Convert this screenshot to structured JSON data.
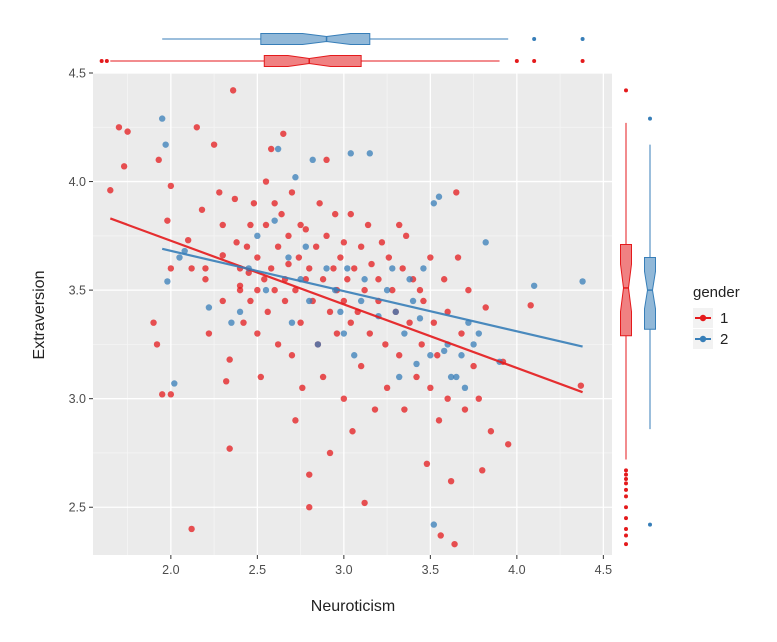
{
  "chart_data": {
    "type": "scatter",
    "title": "",
    "xlabel": "Neuroticism",
    "ylabel": "Extraversion",
    "xlim": [
      1.55,
      4.55
    ],
    "ylim": [
      2.28,
      4.5
    ],
    "x_ticks": [
      "2.0",
      "2.5",
      "3.0",
      "3.5",
      "4.0",
      "4.5"
    ],
    "y_ticks": [
      "2.5",
      "3.0",
      "3.5",
      "4.0",
      "4.5"
    ],
    "grid": true,
    "panel_background": "#ebebeb",
    "legend": {
      "title": "gender",
      "placement": "right",
      "entries": [
        {
          "label": "1",
          "color": "#e41a1c"
        },
        {
          "label": "2",
          "color": "#377eb8"
        }
      ]
    },
    "series": [
      {
        "name": "1",
        "color": "#e41a1c",
        "trend": {
          "x": [
            1.65,
            4.38
          ],
          "y": [
            3.83,
            3.03
          ]
        },
        "x_box": {
          "whisker_low": 1.65,
          "q1": 2.54,
          "median": 2.8,
          "q3": 3.1,
          "whisker_high": 3.9,
          "outliers": [
            1.6,
            1.63,
            4.0,
            4.1,
            4.38
          ]
        },
        "y_box": {
          "whisker_low": 2.72,
          "q1": 3.29,
          "median": 3.51,
          "q3": 3.71,
          "whisker_high": 4.27,
          "outliers": [
            2.33,
            2.37,
            2.4,
            2.45,
            2.5,
            2.55,
            2.58,
            2.61,
            2.63,
            2.65,
            2.67,
            4.42
          ]
        },
        "points": [
          [
            1.65,
            3.96
          ],
          [
            1.7,
            4.25
          ],
          [
            1.73,
            4.07
          ],
          [
            1.75,
            4.23
          ],
          [
            1.9,
            3.35
          ],
          [
            1.92,
            3.25
          ],
          [
            1.95,
            3.02
          ],
          [
            2.0,
            3.02
          ],
          [
            1.93,
            4.1
          ],
          [
            2.0,
            3.98
          ],
          [
            1.98,
            3.82
          ],
          [
            2.0,
            3.6
          ],
          [
            2.1,
            3.73
          ],
          [
            2.12,
            3.6
          ],
          [
            2.12,
            2.4
          ],
          [
            2.15,
            4.25
          ],
          [
            2.18,
            3.87
          ],
          [
            2.2,
            3.6
          ],
          [
            2.2,
            3.55
          ],
          [
            2.22,
            3.3
          ],
          [
            2.25,
            4.17
          ],
          [
            2.28,
            3.95
          ],
          [
            2.3,
            3.8
          ],
          [
            2.3,
            3.66
          ],
          [
            2.3,
            3.45
          ],
          [
            2.32,
            3.08
          ],
          [
            2.34,
            2.77
          ],
          [
            2.34,
            3.18
          ],
          [
            2.36,
            4.42
          ],
          [
            2.37,
            3.92
          ],
          [
            2.38,
            3.72
          ],
          [
            2.4,
            3.52
          ],
          [
            2.4,
            3.5
          ],
          [
            2.4,
            3.6
          ],
          [
            2.42,
            3.35
          ],
          [
            2.44,
            3.7
          ],
          [
            2.45,
            3.58
          ],
          [
            2.46,
            3.8
          ],
          [
            2.46,
            3.45
          ],
          [
            2.48,
            3.9
          ],
          [
            2.5,
            3.65
          ],
          [
            2.5,
            3.5
          ],
          [
            2.5,
            3.3
          ],
          [
            2.52,
            3.1
          ],
          [
            2.54,
            3.55
          ],
          [
            2.55,
            3.8
          ],
          [
            2.55,
            4.0
          ],
          [
            2.56,
            3.4
          ],
          [
            2.58,
            3.6
          ],
          [
            2.58,
            4.15
          ],
          [
            2.6,
            3.9
          ],
          [
            2.6,
            3.5
          ],
          [
            2.62,
            3.25
          ],
          [
            2.62,
            3.7
          ],
          [
            2.64,
            3.85
          ],
          [
            2.65,
            4.22
          ],
          [
            2.66,
            3.55
          ],
          [
            2.66,
            3.45
          ],
          [
            2.68,
            3.75
          ],
          [
            2.68,
            3.62
          ],
          [
            2.7,
            3.2
          ],
          [
            2.7,
            3.95
          ],
          [
            2.72,
            2.9
          ],
          [
            2.72,
            3.5
          ],
          [
            2.74,
            3.65
          ],
          [
            2.75,
            3.8
          ],
          [
            2.75,
            3.35
          ],
          [
            2.76,
            3.05
          ],
          [
            2.78,
            3.55
          ],
          [
            2.78,
            3.78
          ],
          [
            2.8,
            3.6
          ],
          [
            2.8,
            2.5
          ],
          [
            2.8,
            2.65
          ],
          [
            2.82,
            3.45
          ],
          [
            2.84,
            3.7
          ],
          [
            2.85,
            3.25
          ],
          [
            2.86,
            3.9
          ],
          [
            2.88,
            3.55
          ],
          [
            2.88,
            3.1
          ],
          [
            2.9,
            3.75
          ],
          [
            2.9,
            4.1
          ],
          [
            2.92,
            3.4
          ],
          [
            2.92,
            2.75
          ],
          [
            2.94,
            3.6
          ],
          [
            2.95,
            3.85
          ],
          [
            2.96,
            3.3
          ],
          [
            2.96,
            3.5
          ],
          [
            2.98,
            3.65
          ],
          [
            3.0,
            3.45
          ],
          [
            3.0,
            3.72
          ],
          [
            3.0,
            3.0
          ],
          [
            3.02,
            3.55
          ],
          [
            3.04,
            3.35
          ],
          [
            3.04,
            3.85
          ],
          [
            3.05,
            2.85
          ],
          [
            3.06,
            3.6
          ],
          [
            3.08,
            3.4
          ],
          [
            3.1,
            3.7
          ],
          [
            3.1,
            3.15
          ],
          [
            3.12,
            2.52
          ],
          [
            3.12,
            3.5
          ],
          [
            3.14,
            3.8
          ],
          [
            3.15,
            3.3
          ],
          [
            3.16,
            3.62
          ],
          [
            3.18,
            2.95
          ],
          [
            3.2,
            3.55
          ],
          [
            3.2,
            3.45
          ],
          [
            3.22,
            3.72
          ],
          [
            3.24,
            3.25
          ],
          [
            3.25,
            3.05
          ],
          [
            3.26,
            3.65
          ],
          [
            3.28,
            3.5
          ],
          [
            3.3,
            3.4
          ],
          [
            3.32,
            3.2
          ],
          [
            3.32,
            3.8
          ],
          [
            3.34,
            3.6
          ],
          [
            3.35,
            2.95
          ],
          [
            3.36,
            3.75
          ],
          [
            3.38,
            3.35
          ],
          [
            3.4,
            3.55
          ],
          [
            3.42,
            3.1
          ],
          [
            3.44,
            3.5
          ],
          [
            3.45,
            3.25
          ],
          [
            3.46,
            3.45
          ],
          [
            3.48,
            2.7
          ],
          [
            3.5,
            3.05
          ],
          [
            3.5,
            3.65
          ],
          [
            3.52,
            3.35
          ],
          [
            3.54,
            3.2
          ],
          [
            3.55,
            2.9
          ],
          [
            3.56,
            2.37
          ],
          [
            3.58,
            3.55
          ],
          [
            3.6,
            3.0
          ],
          [
            3.6,
            3.4
          ],
          [
            3.62,
            2.62
          ],
          [
            3.64,
            2.33
          ],
          [
            3.65,
            3.95
          ],
          [
            3.66,
            3.65
          ],
          [
            3.68,
            3.3
          ],
          [
            3.7,
            2.95
          ],
          [
            3.72,
            3.5
          ],
          [
            3.75,
            3.15
          ],
          [
            3.78,
            3.0
          ],
          [
            3.8,
            2.67
          ],
          [
            3.82,
            3.42
          ],
          [
            3.85,
            2.85
          ],
          [
            3.92,
            3.17
          ],
          [
            3.95,
            2.79
          ],
          [
            4.08,
            3.43
          ],
          [
            4.37,
            3.06
          ]
        ]
      },
      {
        "name": "2",
        "color": "#377eb8",
        "trend": {
          "x": [
            1.95,
            4.38
          ],
          "y": [
            3.69,
            3.24
          ]
        },
        "x_box": {
          "whisker_low": 1.95,
          "q1": 2.52,
          "median": 2.9,
          "q3": 3.15,
          "whisker_high": 3.95,
          "outliers": [
            4.1,
            4.38
          ]
        },
        "y_box": {
          "whisker_low": 2.86,
          "q1": 3.32,
          "median": 3.5,
          "q3": 3.65,
          "whisker_high": 4.17,
          "outliers": [
            2.42,
            4.29
          ]
        },
        "points": [
          [
            1.95,
            4.29
          ],
          [
            1.97,
            4.17
          ],
          [
            1.98,
            3.54
          ],
          [
            2.02,
            3.07
          ],
          [
            2.05,
            3.65
          ],
          [
            2.08,
            3.68
          ],
          [
            2.22,
            3.42
          ],
          [
            2.35,
            3.35
          ],
          [
            2.4,
            3.4
          ],
          [
            2.45,
            3.6
          ],
          [
            2.5,
            3.75
          ],
          [
            2.55,
            3.5
          ],
          [
            2.6,
            3.82
          ],
          [
            2.62,
            4.15
          ],
          [
            2.68,
            3.65
          ],
          [
            2.7,
            3.35
          ],
          [
            2.72,
            4.02
          ],
          [
            2.75,
            3.55
          ],
          [
            2.78,
            3.7
          ],
          [
            2.8,
            3.45
          ],
          [
            2.82,
            4.1
          ],
          [
            2.85,
            3.25
          ],
          [
            2.9,
            3.6
          ],
          [
            2.95,
            3.5
          ],
          [
            2.98,
            3.4
          ],
          [
            3.0,
            3.3
          ],
          [
            3.02,
            3.6
          ],
          [
            3.04,
            4.13
          ],
          [
            3.06,
            3.2
          ],
          [
            3.1,
            3.45
          ],
          [
            3.12,
            3.55
          ],
          [
            3.15,
            4.13
          ],
          [
            3.2,
            3.38
          ],
          [
            3.25,
            3.5
          ],
          [
            3.28,
            3.6
          ],
          [
            3.3,
            3.4
          ],
          [
            3.32,
            3.1
          ],
          [
            3.35,
            3.3
          ],
          [
            3.38,
            3.55
          ],
          [
            3.4,
            3.45
          ],
          [
            3.42,
            3.16
          ],
          [
            3.44,
            3.37
          ],
          [
            3.46,
            3.6
          ],
          [
            3.5,
            3.2
          ],
          [
            3.52,
            3.9
          ],
          [
            3.55,
            3.93
          ],
          [
            3.58,
            3.22
          ],
          [
            3.6,
            3.25
          ],
          [
            3.62,
            3.1
          ],
          [
            3.65,
            3.1
          ],
          [
            3.68,
            3.2
          ],
          [
            3.7,
            3.05
          ],
          [
            3.72,
            3.35
          ],
          [
            3.75,
            3.25
          ],
          [
            3.78,
            3.3
          ],
          [
            3.82,
            3.72
          ],
          [
            3.9,
            3.17
          ],
          [
            4.1,
            3.52
          ],
          [
            4.38,
            3.54
          ],
          [
            3.52,
            2.42
          ]
        ]
      }
    ]
  }
}
